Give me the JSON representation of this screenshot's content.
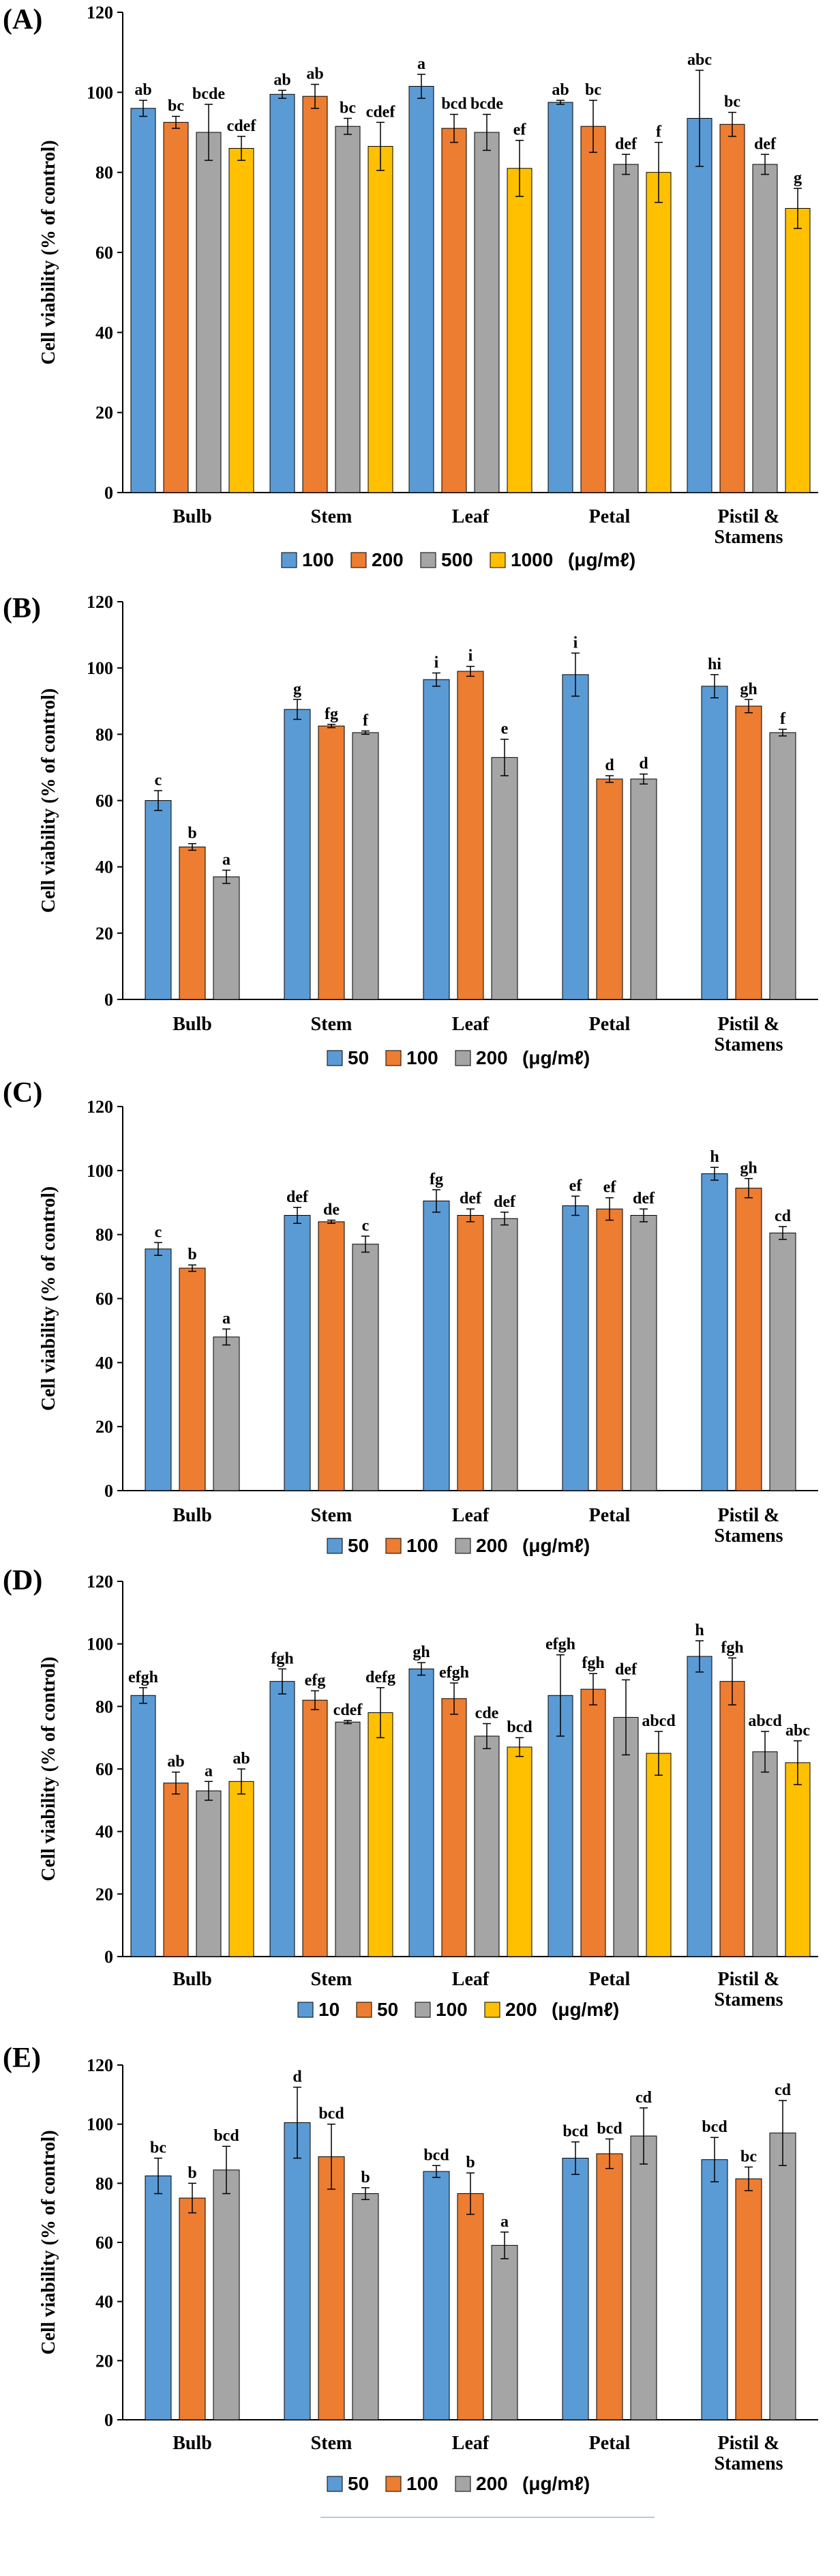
{
  "colors": {
    "blue": "#5B9BD5",
    "orange": "#ED7D31",
    "gray": "#A5A5A5",
    "yellow": "#FFC000",
    "axis": "#000000"
  },
  "chart_data": [
    {
      "panel_label": "(A)",
      "type": "bar",
      "title": "",
      "xlabel": "",
      "ylabel": "Cell viability (% of control)",
      "ylim": [
        0,
        120
      ],
      "yticks": [
        "0",
        "20",
        "40",
        "60",
        "80",
        "100",
        "120"
      ],
      "categories": [
        "Bulb",
        "Stem",
        "Leaf",
        "Petal",
        "Pistil &\nStamens"
      ],
      "legend_unit": "(μg/mℓ)",
      "series": [
        {
          "name": "100",
          "color": "blue",
          "values": [
            96,
            99.5,
            101.5,
            97.5,
            93.5
          ],
          "errors": [
            2,
            1,
            3,
            0.5,
            12
          ],
          "labels": [
            "ab",
            "ab",
            "a",
            "ab",
            "abc"
          ]
        },
        {
          "name": "200",
          "color": "orange",
          "values": [
            92.5,
            99,
            91,
            91.5,
            92
          ],
          "errors": [
            1.5,
            3,
            3.5,
            6.5,
            3
          ],
          "labels": [
            "bc",
            "ab",
            "bcd",
            "bc",
            "bc"
          ]
        },
        {
          "name": "500",
          "color": "gray",
          "values": [
            90,
            91.5,
            90,
            82,
            82
          ],
          "errors": [
            7,
            2,
            4.5,
            2.5,
            2.5
          ],
          "labels": [
            "bcde",
            "bc",
            "bcde",
            "def",
            "def"
          ]
        },
        {
          "name": "1000",
          "color": "yellow",
          "values": [
            86,
            86.5,
            81,
            80,
            71
          ],
          "errors": [
            3,
            6,
            7,
            7.5,
            5
          ],
          "labels": [
            "cdef",
            "cdef",
            "ef",
            "f",
            "g"
          ]
        }
      ]
    },
    {
      "panel_label": "(B)",
      "type": "bar",
      "title": "",
      "xlabel": "",
      "ylabel": "Cell viability (% of control)",
      "ylim": [
        0,
        120
      ],
      "yticks": [
        "0",
        "20",
        "40",
        "60",
        "80",
        "100",
        "120"
      ],
      "categories": [
        "Bulb",
        "Stem",
        "Leaf",
        "Petal",
        "Pistil &\nStamens"
      ],
      "legend_unit": "(μg/mℓ)",
      "series": [
        {
          "name": "50",
          "color": "blue",
          "values": [
            60,
            87.5,
            96.5,
            98,
            94.5
          ],
          "errors": [
            3,
            3,
            2,
            6.5,
            3.5
          ],
          "labels": [
            "c",
            "g",
            "i",
            "i",
            "hi"
          ]
        },
        {
          "name": "100",
          "color": "orange",
          "values": [
            46,
            82.5,
            99,
            66.5,
            88.5
          ],
          "errors": [
            1,
            0.5,
            1.5,
            1,
            2
          ],
          "labels": [
            "b",
            "fg",
            "i",
            "d",
            "gh"
          ]
        },
        {
          "name": "200",
          "color": "gray",
          "values": [
            37,
            80.5,
            73,
            66.5,
            80.5
          ],
          "errors": [
            2,
            0.5,
            5.5,
            1.5,
            1
          ],
          "labels": [
            "a",
            "f",
            "e",
            "d",
            "f"
          ]
        }
      ]
    },
    {
      "panel_label": "(C)",
      "type": "bar",
      "title": "",
      "xlabel": "",
      "ylabel": "Cell viability (% of control)",
      "ylim": [
        0,
        120
      ],
      "yticks": [
        "0",
        "20",
        "40",
        "60",
        "80",
        "100",
        "120"
      ],
      "categories": [
        "Bulb",
        "Stem",
        "Leaf",
        "Petal",
        "Pistil &\nStamens"
      ],
      "legend_unit": "(μg/mℓ)",
      "series": [
        {
          "name": "50",
          "color": "blue",
          "values": [
            75.5,
            86,
            90.5,
            89,
            99
          ],
          "errors": [
            2,
            2.5,
            3.5,
            3,
            2
          ],
          "labels": [
            "c",
            "def",
            "fg",
            "ef",
            "h"
          ]
        },
        {
          "name": "100",
          "color": "orange",
          "values": [
            69.5,
            84,
            86,
            88,
            94.5
          ],
          "errors": [
            1,
            0.5,
            2,
            3.5,
            3
          ],
          "labels": [
            "b",
            "de",
            "def",
            "ef",
            "gh"
          ]
        },
        {
          "name": "200",
          "color": "gray",
          "values": [
            48,
            77,
            85,
            86,
            80.5
          ],
          "errors": [
            2.5,
            2.5,
            2,
            2,
            2
          ],
          "labels": [
            "a",
            "c",
            "def",
            "def",
            "cd"
          ]
        }
      ]
    },
    {
      "panel_label": "(D)",
      "type": "bar",
      "title": "",
      "xlabel": "",
      "ylabel": "Cell viability (% of control)",
      "ylim": [
        0,
        120
      ],
      "yticks": [
        "0",
        "20",
        "40",
        "60",
        "80",
        "100",
        "120"
      ],
      "categories": [
        "Bulb",
        "Stem",
        "Leaf",
        "Petal",
        "Pistil &\nStamens"
      ],
      "legend_unit": "(μg/mℓ)",
      "series": [
        {
          "name": "10",
          "color": "blue",
          "values": [
            83.5,
            88,
            92,
            83.5,
            96
          ],
          "errors": [
            2.5,
            4,
            2,
            13,
            5
          ],
          "labels": [
            "efgh",
            "fgh",
            "gh",
            "efgh",
            "h"
          ]
        },
        {
          "name": "50",
          "color": "orange",
          "values": [
            55.5,
            82,
            82.5,
            85.5,
            88
          ],
          "errors": [
            3.5,
            3,
            5,
            5,
            7.5
          ],
          "labels": [
            "ab",
            "efg",
            "efgh",
            "fgh",
            "fgh"
          ]
        },
        {
          "name": "100",
          "color": "gray",
          "values": [
            53,
            75,
            70.5,
            76.5,
            65.5
          ],
          "errors": [
            3,
            0.5,
            4,
            12,
            6.5
          ],
          "labels": [
            "a",
            "cdef",
            "cde",
            "def",
            "abcd"
          ]
        },
        {
          "name": "200",
          "color": "yellow",
          "values": [
            56,
            78,
            67,
            65,
            62
          ],
          "errors": [
            4,
            8,
            3,
            7,
            7
          ],
          "labels": [
            "ab",
            "defg",
            "bcd",
            "abcd",
            "abc"
          ]
        }
      ]
    },
    {
      "panel_label": "(E)",
      "type": "bar",
      "title": "",
      "xlabel": "",
      "ylabel": "Cell viability (% of control)",
      "ylim": [
        0,
        120
      ],
      "yticks": [
        "0",
        "20",
        "40",
        "60",
        "80",
        "100",
        "120"
      ],
      "categories": [
        "Bulb",
        "Stem",
        "Leaf",
        "Petal",
        "Pistil &\nStamens"
      ],
      "legend_unit": "(μg/mℓ)",
      "series": [
        {
          "name": "50",
          "color": "blue",
          "values": [
            82.5,
            100.5,
            84,
            88.5,
            88
          ],
          "errors": [
            6,
            12,
            2,
            5.5,
            7.5
          ],
          "labels": [
            "bc",
            "d",
            "bcd",
            "bcd",
            "bcd"
          ]
        },
        {
          "name": "100",
          "color": "orange",
          "values": [
            75,
            89,
            76.5,
            90,
            81.5
          ],
          "errors": [
            5,
            11,
            7,
            5,
            4
          ],
          "labels": [
            "b",
            "bcd",
            "b",
            "bcd",
            "bc"
          ]
        },
        {
          "name": "200",
          "color": "gray",
          "values": [
            84.5,
            76.5,
            59,
            96,
            97
          ],
          "errors": [
            8,
            2,
            4.5,
            9.5,
            11
          ],
          "labels": [
            "bcd",
            "b",
            "a",
            "cd",
            "cd"
          ]
        }
      ]
    }
  ]
}
